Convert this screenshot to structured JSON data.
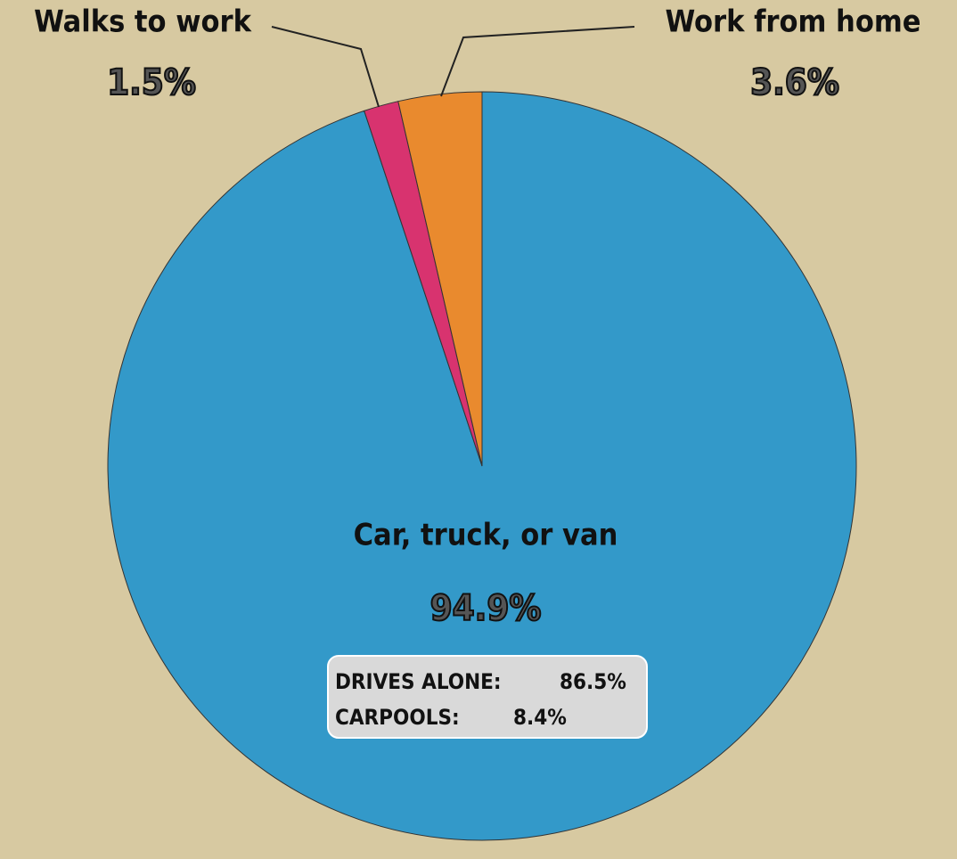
{
  "chart_data": {
    "type": "pie",
    "categories": [
      "Car, truck, or van",
      "Walks to work",
      "Work from home"
    ],
    "values": [
      94.9,
      1.5,
      3.6
    ],
    "value_labels": [
      "94.9%",
      "1.5%",
      "3.6%"
    ],
    "colors": [
      "#3399c9",
      "#d8336f",
      "#e98a2e"
    ],
    "breakdown": [
      {
        "label": "DRIVES ALONE:",
        "value": "86.5%"
      },
      {
        "label": "CARPOOLS:",
        "value": "8.4%"
      }
    ]
  }
}
